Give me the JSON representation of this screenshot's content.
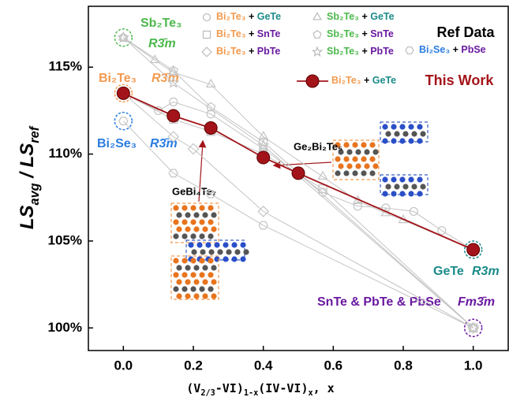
{
  "chart_data": {
    "type": "scatter",
    "ylabel": [
      {
        "text": "LS",
        "sub": false
      },
      {
        "text": "avg",
        "sub": true
      },
      {
        "text": " / LS",
        "sub": false
      },
      {
        "text": "ref",
        "sub": true
      }
    ],
    "xlabel": [
      {
        "text": "(V",
        "sub": false
      },
      {
        "text": "2/3",
        "sub": true
      },
      {
        "text": "-VI)",
        "sub": false
      },
      {
        "text": "1-x",
        "sub": true
      },
      {
        "text": "(IV-VI)",
        "sub": false
      },
      {
        "text": "x",
        "sub": true
      },
      {
        "text": ",  x",
        "sub": false
      }
    ],
    "xlim": [
      -0.1,
      1.1
    ],
    "ylim": [
      98.7,
      118.5
    ],
    "xticks": [
      {
        "value": 0,
        "label": "0.0"
      },
      0.2,
      0.4,
      0.6,
      0.8,
      {
        "value": 1,
        "label": "1.0"
      }
    ],
    "yticks": [
      {
        "value": 100,
        "label": "100%"
      },
      {
        "value": 105,
        "label": "105%"
      },
      {
        "value": 110,
        "label": "110%"
      },
      {
        "value": 115,
        "label": "115%"
      }
    ],
    "ref_title": "Ref Data",
    "work_title": "This Work",
    "ref_series": [
      {
        "name": "Bi₂Te₃ + GeTe",
        "marker": "circle",
        "color": "#c4c4c4",
        "label_colors": [
          "#f39a4f",
          "#1b8a8a"
        ],
        "x": [
          0,
          0.1,
          0.143,
          0.25,
          0.4,
          0.57,
          0.67,
          0.75,
          0.83,
          0.91,
          1
        ],
        "values": [
          113.5,
          112.5,
          113,
          112.3,
          110.3,
          107.8,
          107,
          106.9,
          106.7,
          105.6,
          104.5
        ]
      },
      {
        "name": "Bi₂Te₃ + SnTe",
        "marker": "square",
        "color": "#c4c4c4",
        "label_colors": [
          "#f39a4f",
          "#6a1aa0"
        ],
        "x": [
          0,
          0.143,
          0.25,
          0.4,
          0.57,
          1
        ],
        "values": [
          113.5,
          112,
          111.3,
          110,
          108,
          100
        ]
      },
      {
        "name": "Bi₂Te₃ + PbTe",
        "marker": "diamond",
        "color": "#c4c4c4",
        "label_colors": [
          "#f39a4f",
          "#6a1aa0"
        ],
        "x": [
          0,
          0.143,
          0.2,
          0.4,
          1
        ],
        "values": [
          113.5,
          111,
          110.3,
          106.7,
          100
        ]
      },
      {
        "name": "Sb₂Te₃ + GeTe",
        "marker": "triangle",
        "color": "#c4c4c4",
        "label_colors": [
          "#4cb84c",
          "#1b8a8a"
        ],
        "x": [
          0,
          0.09,
          0.143,
          0.25,
          0.4,
          0.57,
          0.67,
          0.75,
          0.8,
          1
        ],
        "values": [
          116.7,
          115.4,
          114.7,
          114,
          111,
          108.7,
          107.3,
          106.6,
          106.2,
          104.5
        ]
      },
      {
        "name": "Sb₂Te₃ + SnTe",
        "marker": "pentagon",
        "color": "#c4c4c4",
        "label_colors": [
          "#4cb84c",
          "#6a1aa0"
        ],
        "x": [
          0,
          0.143,
          0.25,
          0.4,
          1
        ],
        "values": [
          116.7,
          114.8,
          112.7,
          110.7,
          100
        ]
      },
      {
        "name": "Sb₂Te₃ + PbTe",
        "marker": "star",
        "color": "#c4c4c4",
        "label_colors": [
          "#4cb84c",
          "#6a1aa0"
        ],
        "x": [
          0,
          0.143,
          0.4,
          1
        ],
        "values": [
          116.7,
          114.1,
          110.5,
          100
        ]
      },
      {
        "name": "Bi₂Se₃ + PbSe",
        "marker": "hexagon",
        "color": "#c4c4c4",
        "label_colors": [
          "#2a7de1",
          "#6a1aa0"
        ],
        "x": [
          0,
          0.143,
          0.25,
          0.4,
          1
        ],
        "values": [
          111.9,
          108.9,
          107.7,
          105.9,
          100
        ]
      }
    ],
    "series": [
      {
        "name": "Bi₂Te₃ + GeTe",
        "marker": "circle",
        "color": "#a3141a",
        "label_colors": [
          "#f39a4f",
          "#1b8a8a"
        ],
        "x": [
          0,
          0.143,
          0.25,
          0.4,
          0.5,
          1
        ],
        "values": [
          113.5,
          112.2,
          111.5,
          109.8,
          108.9,
          104.5
        ]
      }
    ],
    "annotations": {
      "sb2te3": "Sb₂Te₃",
      "sb2te3_group": "R3̄m",
      "bi2te3": "Bi₂Te₃",
      "bi2te3_group": "R3̄m",
      "bi2se3": "Bi₂Se₃",
      "bi2se3_group": "R3̄m",
      "getebi": "GeBi₄Te₇",
      "ge2bi2te5": "Ge₂Bi₂Te₅",
      "gete": "GeTe",
      "gete_group": "R3m",
      "rocksalt": "SnTe & PbTe & PbSe",
      "rocksalt_group": "Fm3̄m"
    }
  }
}
